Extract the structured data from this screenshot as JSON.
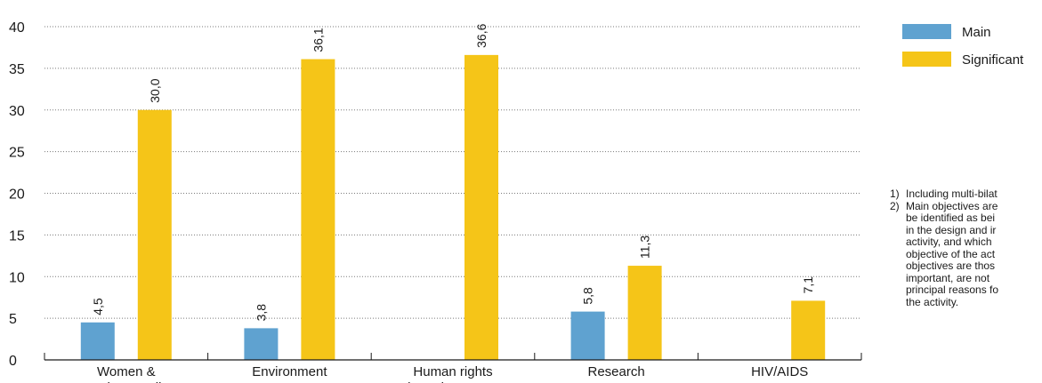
{
  "chart_data": {
    "type": "bar",
    "categories": [
      [
        "Women &",
        "gender equality"
      ],
      [
        "Environment"
      ],
      [
        "Human rights",
        "and good governance"
      ],
      [
        "Research"
      ],
      [
        "HIV/AIDS"
      ]
    ],
    "series": [
      {
        "name": "Main",
        "color": "#5fa2d0",
        "values": [
          4.5,
          3.8,
          null,
          5.8,
          null
        ],
        "labels": [
          "4,5",
          "3,8",
          "",
          "5,8",
          ""
        ]
      },
      {
        "name": "Significant",
        "color": "#f5c518",
        "values": [
          30.0,
          36.1,
          36.6,
          11.3,
          7.1
        ],
        "labels": [
          "30,0",
          "36,1",
          "36,6",
          "11,3",
          "7,1"
        ]
      }
    ],
    "xlabel": "",
    "ylabel": "",
    "ylim": [
      0,
      40
    ],
    "yticks": [
      0,
      5,
      10,
      15,
      20,
      25,
      30,
      35,
      40
    ],
    "grid": true,
    "legend_position": "top-right"
  },
  "notes": [
    {
      "num": "1)",
      "lines": [
        "Including multi-bilat"
      ]
    },
    {
      "num": "2)",
      "lines": [
        "Main objectives are",
        "be identified as bei",
        "in the design and ir",
        "activity, and which",
        "objective of the act",
        "objectives are thos",
        "important, are not",
        "principal reasons fo",
        "the activity."
      ]
    }
  ]
}
